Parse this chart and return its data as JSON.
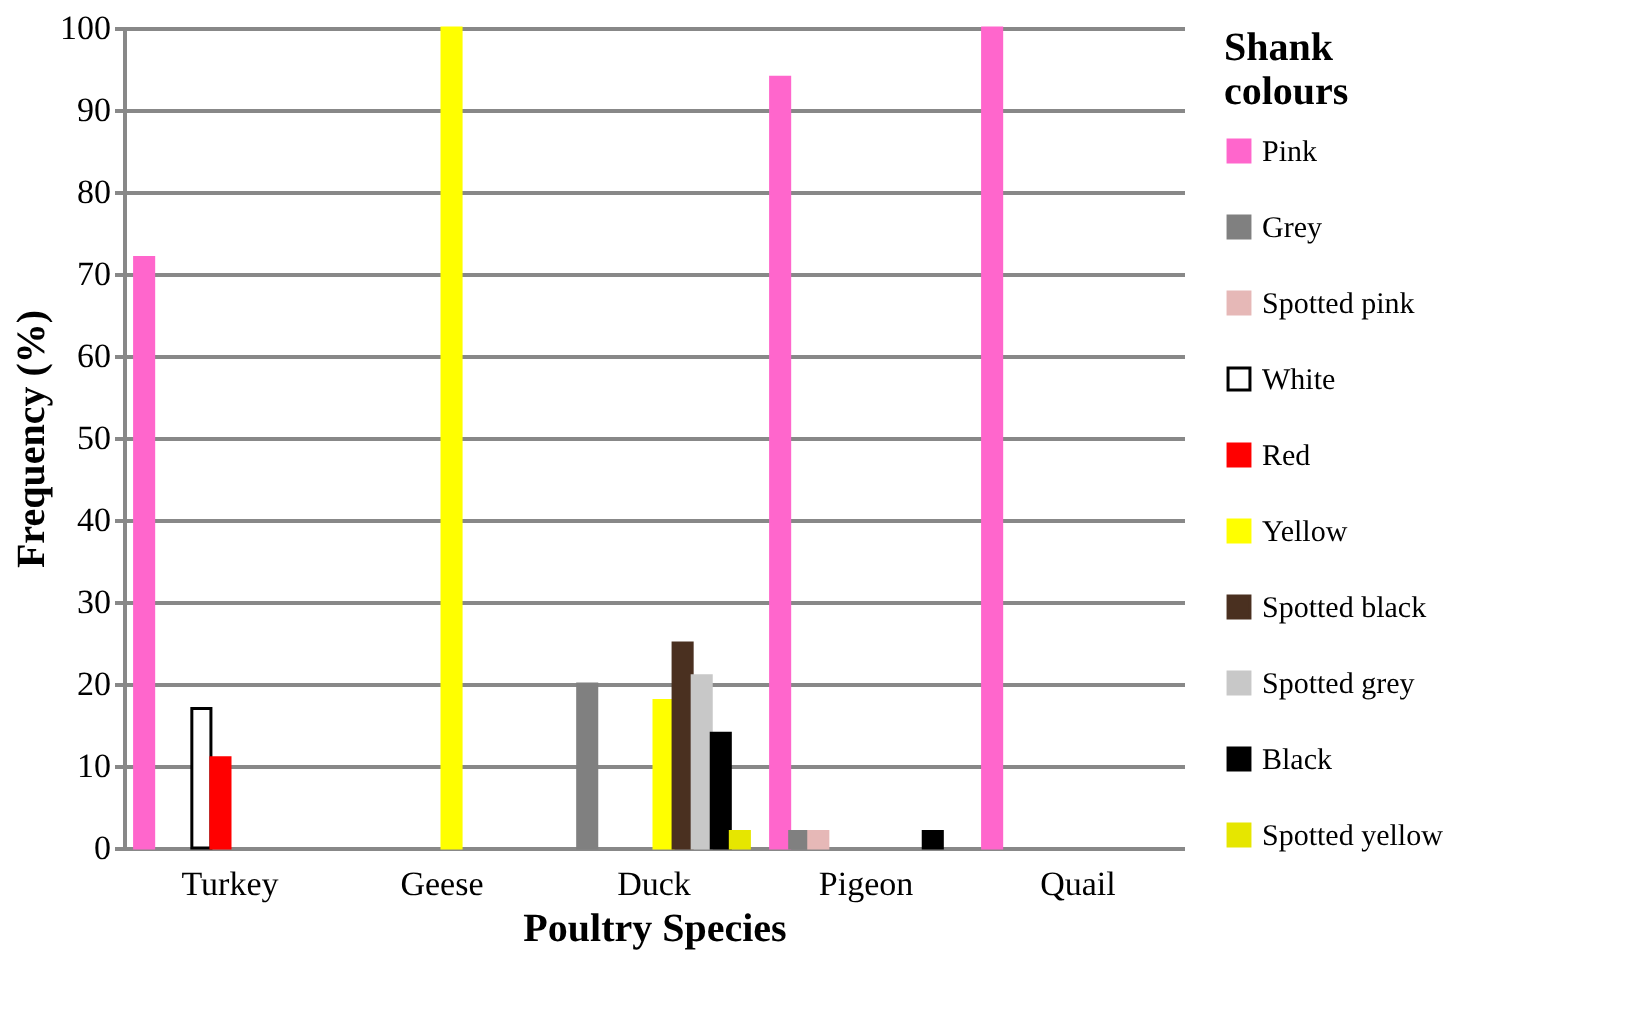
{
  "chart_data": {
    "type": "bar",
    "xlabel": "Poultry Species",
    "ylabel": "Frequency (%)",
    "legend_title": "Shank colours",
    "categories": [
      "Turkey",
      "Geese",
      "Duck",
      "Pigeon",
      "Quail"
    ],
    "series": [
      {
        "name": "Pink",
        "color": "#ff66cc",
        "values": [
          72,
          null,
          null,
          94,
          100
        ]
      },
      {
        "name": "Grey",
        "color": "#808080",
        "values": [
          null,
          null,
          20,
          2,
          null
        ]
      },
      {
        "name": "Spotted pink",
        "color": "#e6b8b7",
        "values": [
          null,
          null,
          null,
          2,
          null
        ]
      },
      {
        "name": "White",
        "color": "#ffffff",
        "values": [
          17,
          null,
          null,
          null,
          null
        ]
      },
      {
        "name": "Red",
        "color": "#ff0000",
        "values": [
          11,
          null,
          null,
          null,
          null
        ]
      },
      {
        "name": "Yellow",
        "color": "#ffff00",
        "values": [
          null,
          100,
          18,
          null,
          null
        ]
      },
      {
        "name": "Spotted black",
        "color": "#4a3020",
        "values": [
          null,
          null,
          25,
          null,
          null
        ]
      },
      {
        "name": "Spotted grey",
        "color": "#c8c8c8",
        "values": [
          null,
          null,
          21,
          null,
          null
        ]
      },
      {
        "name": "Black",
        "color": "#000000",
        "values": [
          null,
          null,
          14,
          2,
          null
        ]
      },
      {
        "name": "Spotted yellow",
        "color": "#e6e600",
        "values": [
          null,
          null,
          2,
          null,
          null
        ]
      }
    ],
    "ylim": [
      0,
      100
    ],
    "yticks": [
      0,
      10,
      20,
      30,
      40,
      50,
      60,
      70,
      80,
      90,
      100
    ],
    "grid": "y",
    "legend": "right"
  }
}
